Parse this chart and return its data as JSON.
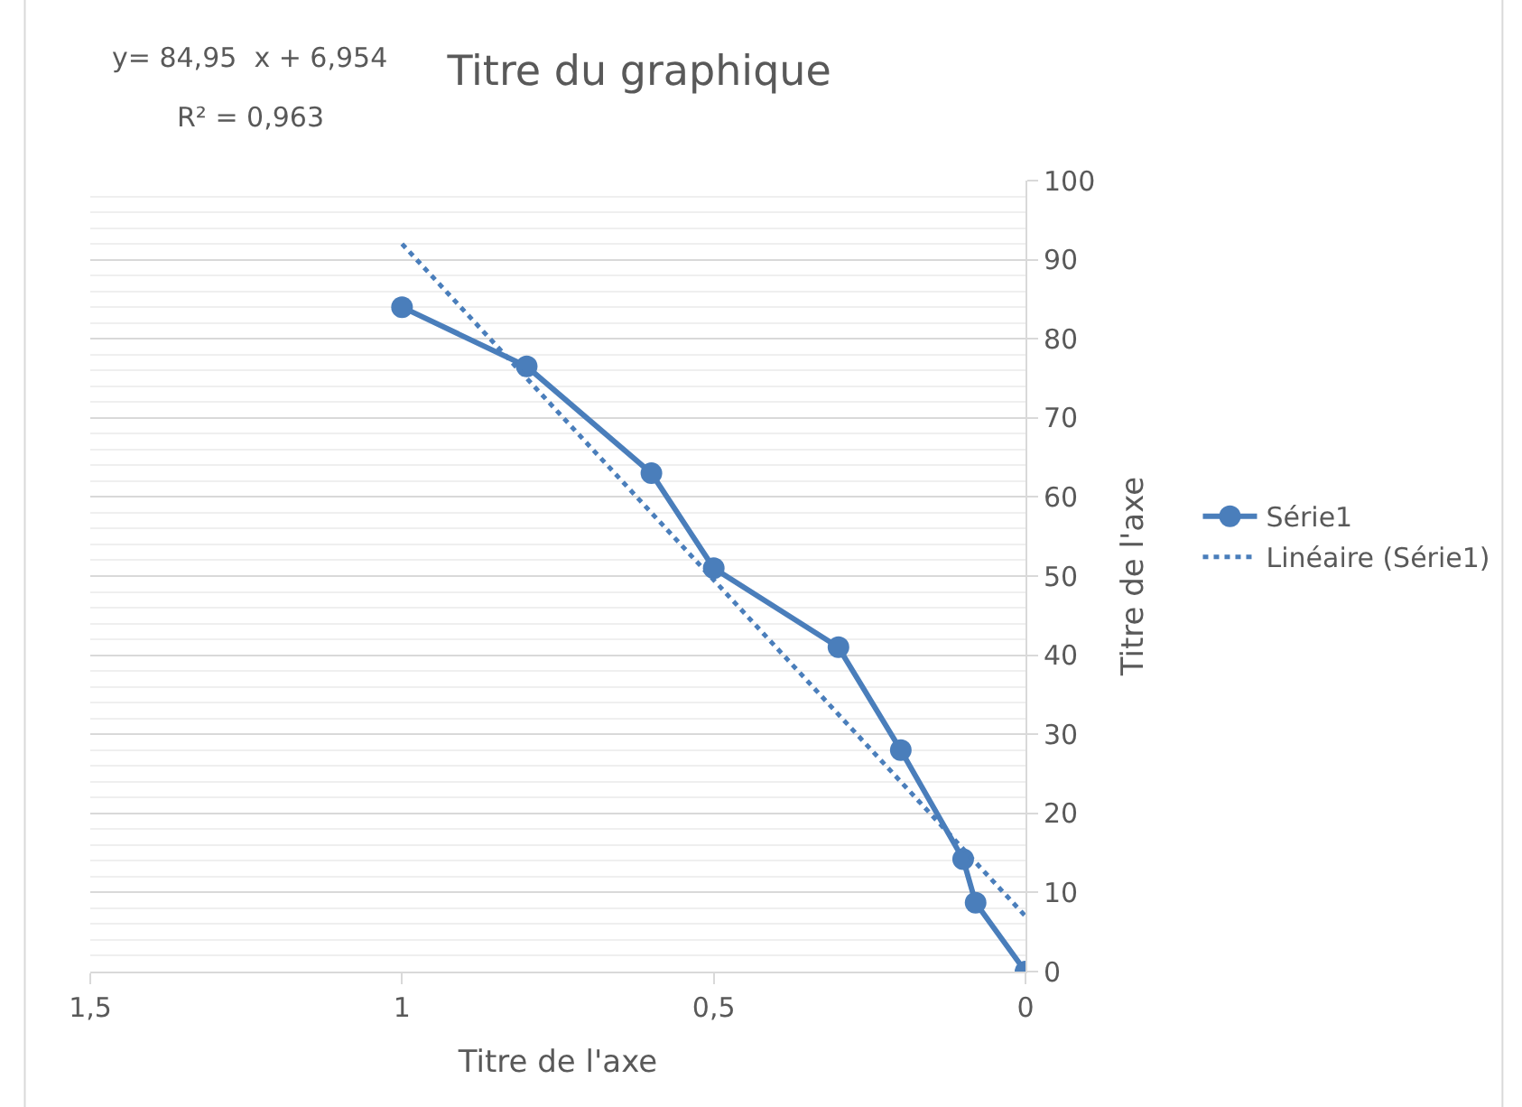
{
  "chart_data": {
    "type": "line",
    "title": "Titre du graphique",
    "xlabel": "Titre de l'axe",
    "ylabel": "Titre de l'axe",
    "annotations": [
      "y= 84,95  x + 6,954",
      "R² = 0,963"
    ],
    "series": [
      {
        "name": "Série1",
        "color": "#4a7ebb",
        "marker": "circle",
        "line_style": "solid",
        "x": [
          1.0,
          0.8,
          0.6,
          0.5,
          0.3,
          0.2,
          0.1,
          0.08,
          0
        ],
        "values": [
          84,
          76.5,
          63,
          51,
          41,
          28,
          14.2,
          8.7,
          0
        ]
      },
      {
        "name": "Linéaire (Série1)",
        "color": "#4a7ebb",
        "marker": "none",
        "line_style": "dotted",
        "x": [
          1.0,
          0
        ],
        "values": [
          92,
          7
        ]
      }
    ],
    "xlim": [
      1.5,
      0
    ],
    "xticks": [
      {
        "value": 1.5,
        "label": "1,5"
      },
      1,
      {
        "value": 0.5,
        "label": "0,5"
      },
      0
    ],
    "ylim": [
      0,
      100
    ],
    "yticks": [
      0,
      10,
      20,
      30,
      40,
      50,
      60,
      70,
      80,
      90,
      100
    ],
    "grid": "y",
    "legend": "right"
  }
}
